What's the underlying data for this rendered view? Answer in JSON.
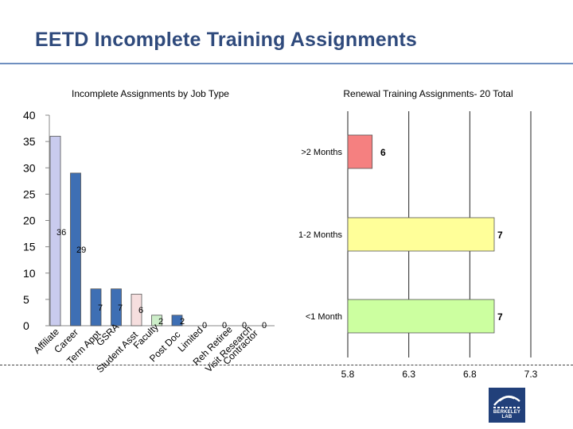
{
  "page": {
    "title": "EETD Incomplete Training Assignments",
    "logo_text": "BERKELEY LAB"
  },
  "colors": {
    "title": "#2f4a7c",
    "rule": "#6f8fc0",
    "logo_bg": "#21407a"
  },
  "chart_data": [
    {
      "type": "bar",
      "title": "Incomplete Assignments by Job Type",
      "xlabel": "",
      "ylabel": "",
      "ylim": [
        0,
        40
      ],
      "yticks": [
        0,
        5,
        10,
        15,
        20,
        25,
        30,
        35,
        40
      ],
      "categories": [
        "Affiliate",
        "Career",
        "Term Appt",
        "GSRA",
        "Student Asst",
        "Faculty",
        "Post Doc",
        "Limited",
        "Reh Retiree",
        "Visit Research",
        "Contractor"
      ],
      "values": [
        36,
        29,
        7,
        7,
        6,
        2,
        2,
        0,
        0,
        0,
        0
      ],
      "data_labels": [
        "36",
        "29",
        "7",
        "7",
        "6",
        "2",
        "2",
        "0",
        "0",
        "0",
        "0"
      ],
      "colors": [
        "#c9cbee",
        "#3e6fb4",
        "#3e6fb4",
        "#3e6fb4",
        "#f6dede",
        "#cdeec9",
        "#3e6fb4",
        "#3e6fb4",
        "#3e6fb4",
        "#3e6fb4",
        "#3e6fb4"
      ],
      "grid": false,
      "legend": "none"
    },
    {
      "type": "bar",
      "orientation": "horizontal",
      "title": "Renewal Training Assignments- 20 Total",
      "xlabel": "",
      "ylabel": "",
      "categories": [
        ">2 Months",
        "1-2 Months",
        "<1 Month"
      ],
      "values": [
        6,
        7,
        7
      ],
      "data_labels": [
        "6",
        "7",
        "7"
      ],
      "colors": [
        "#f58080",
        "#ffff99",
        "#ccffa0"
      ],
      "xtick_labels": [
        "5.8",
        "6.3",
        "6.8",
        "7.3"
      ],
      "grid": true,
      "legend": "none"
    }
  ]
}
